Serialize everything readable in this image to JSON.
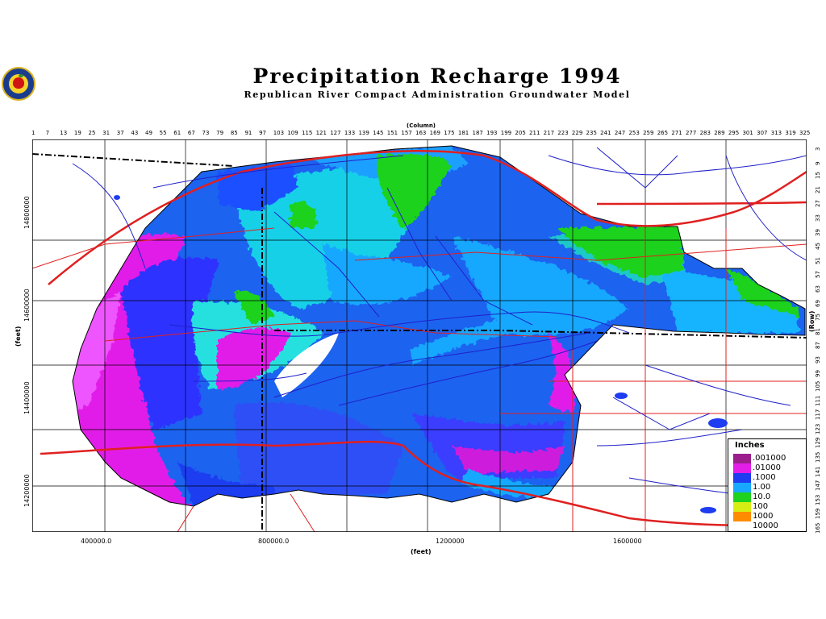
{
  "title": "Precipitation Recharge 1994",
  "subtitle": "Republican River Compact Administration Groundwater Model",
  "top_axis": {
    "label": "(Column)",
    "ticks": [
      "1",
      "7",
      "13",
      "19",
      "25",
      "31",
      "37",
      "43",
      "49",
      "55",
      "61",
      "67",
      "73",
      "79",
      "85",
      "91",
      "97",
      "103",
      "109",
      "115",
      "121",
      "127",
      "133",
      "139",
      "145",
      "151",
      "157",
      "163",
      "169",
      "175",
      "181",
      "187",
      "193",
      "199",
      "205",
      "211",
      "217",
      "223",
      "229",
      "235",
      "241",
      "247",
      "253",
      "259",
      "265",
      "271",
      "277",
      "283",
      "289",
      "295",
      "301",
      "307",
      "313",
      "319",
      "325"
    ]
  },
  "right_axis": {
    "label": "(Row)",
    "ticks": [
      "3",
      "9",
      "15",
      "21",
      "27",
      "33",
      "39",
      "45",
      "51",
      "57",
      "63",
      "69",
      "75",
      "81",
      "87",
      "93",
      "99",
      "105",
      "111",
      "117",
      "123",
      "129",
      "135",
      "141",
      "147",
      "153",
      "159",
      "165"
    ]
  },
  "bottom_axis": {
    "label": "(feet)",
    "ticks": [
      {
        "label": "400000.0",
        "value": 400000
      },
      {
        "label": "800000.0",
        "value": 800000
      },
      {
        "label": "1200000",
        "value": 1200000
      },
      {
        "label": "1600000",
        "value": 1600000
      }
    ]
  },
  "left_axis": {
    "label": "(feet)",
    "ticks": [
      {
        "label": "14800000",
        "value": 14800000
      },
      {
        "label": "14600000",
        "value": 14600000
      },
      {
        "label": "14400000",
        "value": 14400000
      },
      {
        "label": "14200000",
        "value": 14200000
      }
    ]
  },
  "legend": {
    "title": "Inches",
    "entries": [
      {
        "label": ".001000",
        "color": "#9b1e8c"
      },
      {
        "label": ".01000",
        "color": "#e21ee8"
      },
      {
        "label": ".1000",
        "color": "#1e3cf0"
      },
      {
        "label": "1.00",
        "color": "#19a8ff"
      },
      {
        "label": "10.0",
        "color": "#1ed21e"
      },
      {
        "label": "100",
        "color": "#d6ee14"
      },
      {
        "label": "1000",
        "color": "#ff8c00"
      },
      {
        "label": "10000",
        "color": "#ffffff"
      }
    ]
  },
  "colors": {
    "roads": "#e02020",
    "rivers": "#2020c8",
    "counties": "#000000",
    "state_line": "#000000"
  }
}
